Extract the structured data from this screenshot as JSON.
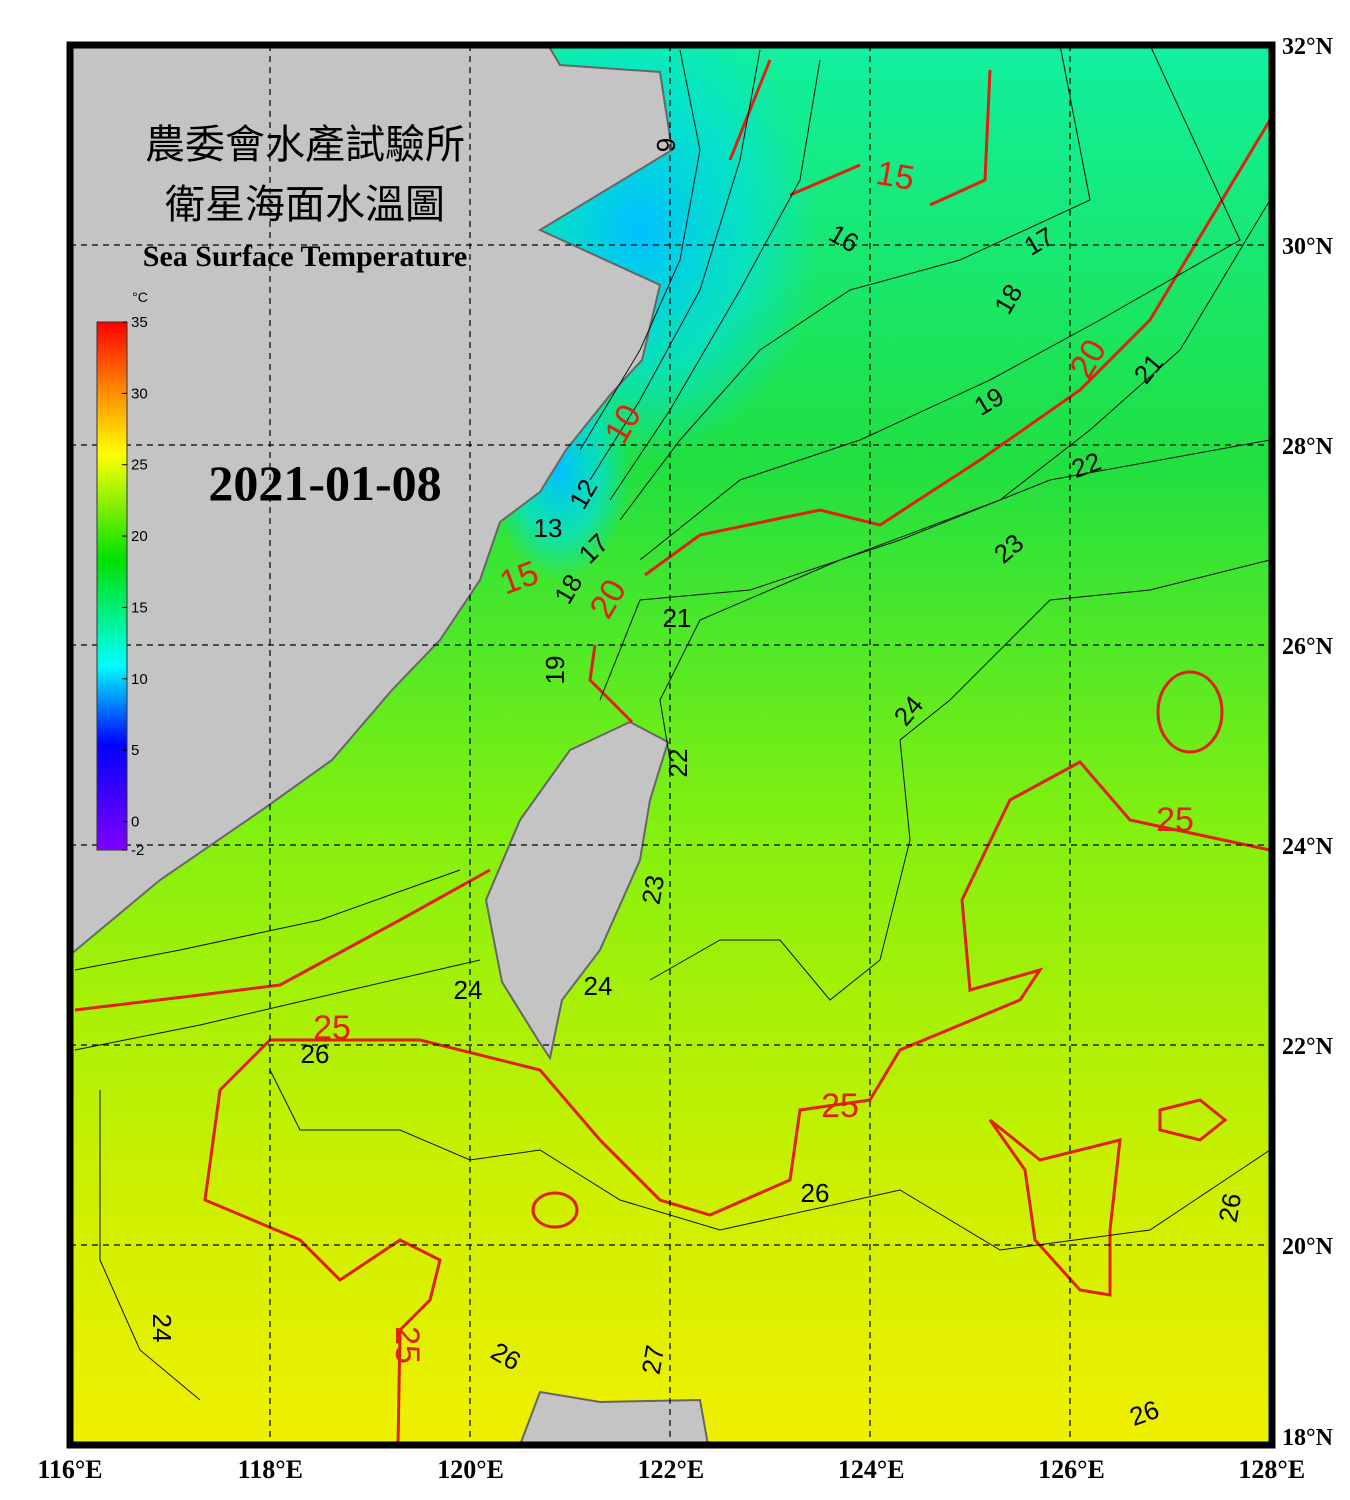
{
  "map": {
    "title_zh": [
      "農委會水產試驗所",
      "衛星海面水溫圖"
    ],
    "title_en": "Sea Surface Temperature",
    "date": "2021-01-08",
    "colorbar": {
      "unit": "°C",
      "min": -2,
      "max": 35,
      "ticks": [
        35,
        30,
        25,
        20,
        15,
        10,
        5,
        0,
        -2
      ]
    },
    "lon_labels": [
      "116°E",
      "118°E",
      "120°E",
      "122°E",
      "124°E",
      "126°E",
      "128°E"
    ],
    "lat_labels": [
      "32°N",
      "30°N",
      "28°N",
      "26°N",
      "24°N",
      "22°N",
      "20°N",
      "18°N"
    ],
    "contour_labels": [
      15,
      15,
      20,
      20,
      25,
      25,
      25,
      25,
      10,
      9,
      16,
      17,
      18,
      19,
      21,
      22,
      23,
      21,
      24,
      22,
      23,
      24,
      24,
      26,
      26,
      26,
      24,
      26,
      27,
      26,
      13,
      12,
      19,
      18,
      17
    ]
  }
}
